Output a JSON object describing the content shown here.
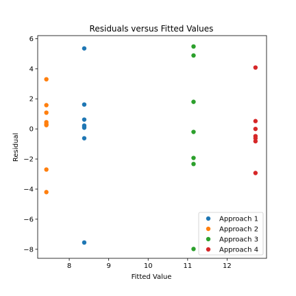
{
  "chart_data": {
    "type": "scatter",
    "title": "Residuals  versus Fitted Values",
    "xlabel": "Fitted Value",
    "ylabel": "Residual",
    "xlim": [
      7.2,
      13.0
    ],
    "ylim": [
      -8.6,
      6.2
    ],
    "xticks": [
      8,
      9,
      10,
      11,
      12
    ],
    "yticks": [
      -8,
      -6,
      -4,
      -2,
      0,
      2,
      4,
      6
    ],
    "xtick_labels": [
      "8",
      "9",
      "10",
      "11",
      "12"
    ],
    "ytick_labels": [
      "−8",
      "−6",
      "−4",
      "−2",
      "0",
      "2",
      "4",
      "6"
    ],
    "grid": false,
    "legend_position": "lower right",
    "series": [
      {
        "name": "Approach 1",
        "color": "#1f77b4",
        "x": [
          8.38,
          8.38,
          8.38,
          8.38,
          8.38,
          8.38,
          8.38,
          8.38
        ],
        "y": [
          5.35,
          1.62,
          0.62,
          0.22,
          0.15,
          0.08,
          -0.62,
          -7.55
        ]
      },
      {
        "name": "Approach 2",
        "color": "#ff7f0e",
        "x": [
          7.42,
          7.42,
          7.42,
          7.42,
          7.42,
          7.42,
          7.42,
          7.42
        ],
        "y": [
          3.3,
          1.58,
          1.08,
          0.45,
          0.32,
          0.25,
          -2.7,
          -4.2
        ]
      },
      {
        "name": "Approach 3",
        "color": "#2ca02c",
        "x": [
          11.15,
          11.15,
          11.15,
          11.15,
          11.15,
          11.15,
          11.15
        ],
        "y": [
          5.48,
          4.88,
          1.8,
          -0.2,
          -1.93,
          -2.33,
          -7.98
        ]
      },
      {
        "name": "Approach 4",
        "color": "#d62728",
        "x": [
          12.72,
          12.72,
          12.72,
          12.72,
          12.72,
          12.72,
          12.72
        ],
        "y": [
          4.08,
          0.52,
          0.0,
          -0.48,
          -0.62,
          -0.82,
          -2.93
        ]
      }
    ]
  }
}
